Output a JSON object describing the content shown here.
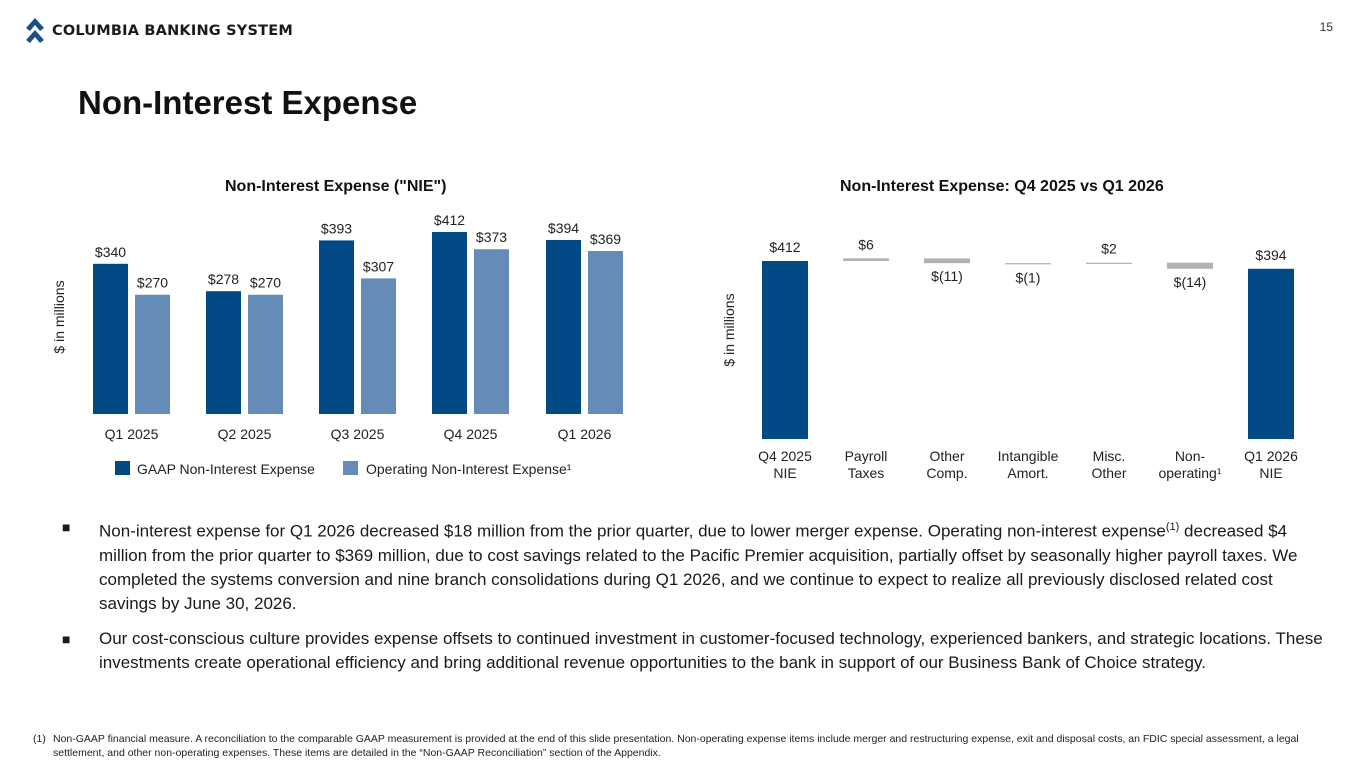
{
  "header": {
    "company": "COLUMBIA BANKING SYSTEM",
    "page_number": "15",
    "title": "Non-Interest Expense",
    "brand_color": "#1a4f8a"
  },
  "chart_data": [
    {
      "type": "bar",
      "title": "Non-Interest Expense (\"NIE\")",
      "ylabel": "$ in millions",
      "categories": [
        "Q1 2025",
        "Q2 2025",
        "Q3 2025",
        "Q4 2025",
        "Q1 2026"
      ],
      "series": [
        {
          "name": "GAAP Non-Interest Expense",
          "color": "#014a86",
          "values": [
            340,
            278,
            393,
            412,
            394
          ],
          "labels": [
            "$340",
            "$278",
            "$393",
            "$412",
            "$394"
          ]
        },
        {
          "name": "Operating Non-Interest Expense¹",
          "color": "#648cb7",
          "values": [
            270,
            270,
            307,
            373,
            369
          ],
          "labels": [
            "$270",
            "$270",
            "$307",
            "$373",
            "$369"
          ]
        }
      ],
      "ylim": [
        0,
        420
      ],
      "grid": false,
      "legend": "bottom"
    },
    {
      "type": "bar",
      "subtype": "waterfall",
      "title": "Non-Interest Expense: Q4 2025 vs Q1 2026",
      "ylabel": "$ in millions",
      "categories": [
        "Q4 2025\nNIE",
        "Payroll\nTaxes",
        "Other\nComp.",
        "Intangible\nAmort.",
        "Misc.\nOther",
        "Non-\noperating¹",
        "Q1 2026\nNIE"
      ],
      "values": [
        412,
        6,
        -11,
        -1,
        2,
        -14,
        394
      ],
      "labels": [
        "$412",
        "$6",
        "$(11)",
        "$(1)",
        "$2",
        "$(14)",
        "$394"
      ],
      "kinds": [
        "total",
        "delta",
        "delta",
        "delta",
        "delta",
        "delta",
        "total"
      ],
      "total_color": "#014a86",
      "delta_color": "#b2b0ad",
      "grid": false
    }
  ],
  "bullets": [
    {
      "text": "Non-interest expense for Q1 2026 decreased $18 million from the prior quarter, due to lower merger expense. Operating non-interest expense",
      "sup": "(1)",
      "text2": " decreased $4 million from the prior quarter to $369 million, due to cost savings related to the Pacific Premier acquisition, partially offset by seasonally higher payroll taxes. We completed the systems conversion and nine branch consolidations during Q1 2026, and we continue to expect to realize all previously disclosed related cost savings by June 30, 2026."
    },
    {
      "text": "Our cost-conscious culture provides expense offsets to continued investment in customer-focused technology, experienced bankers, and strategic locations. These investments create operational efficiency and bring additional revenue opportunities to the bank in support of our Business Bank of Choice strategy."
    }
  ],
  "bullet_mark": "■",
  "footnote": {
    "num": "(1)",
    "text": "Non-GAAP financial measure. A reconciliation to the comparable GAAP measurement is provided at the end of this slide presentation. Non-operating expense items include merger and restructuring expense, exit and disposal costs, an FDIC special assessment, a legal settlement, and other non-operating expenses. These items are detailed in the “Non-GAAP Reconciliation” section of the Appendix."
  }
}
